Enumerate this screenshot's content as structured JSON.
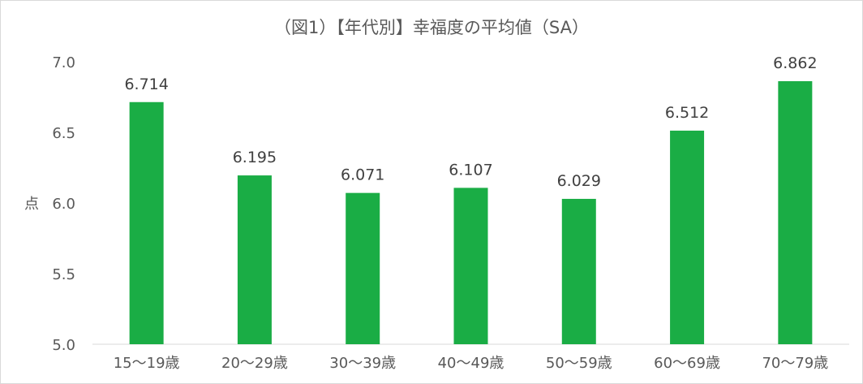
{
  "chart_data": {
    "type": "bar",
    "title": "（図1）【年代別】幸福度の平均値（SA）",
    "xlabel": "",
    "ylabel": "点",
    "ylim": [
      5.0,
      7.0
    ],
    "yticks": [
      "5.0",
      "5.5",
      "6.0",
      "6.5",
      "7.0"
    ],
    "categories": [
      "15～19歳",
      "20～29歳",
      "30～39歳",
      "40～49歳",
      "50～59歳",
      "60～69歳",
      "70～79歳"
    ],
    "values": [
      6.714,
      6.195,
      6.071,
      6.107,
      6.029,
      6.512,
      6.862
    ],
    "value_labels": [
      "6.714",
      "6.195",
      "6.071",
      "6.107",
      "6.029",
      "6.512",
      "6.862"
    ],
    "bar_color": "#1aad45",
    "grid": false,
    "legend": "none"
  }
}
